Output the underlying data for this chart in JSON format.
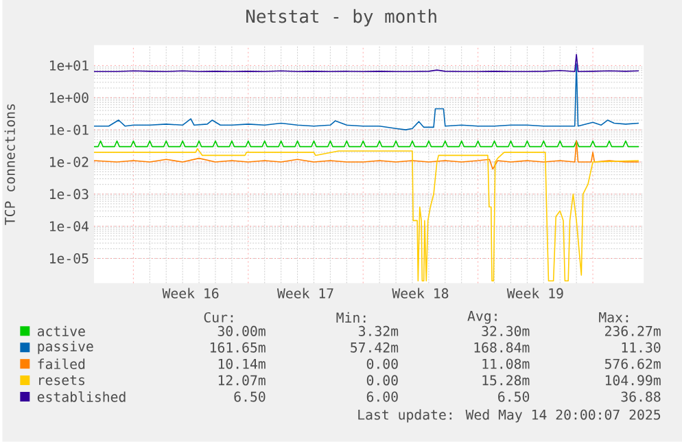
{
  "chart_data": {
    "type": "line",
    "title": "Netstat - by month",
    "ylabel": "TCP connections",
    "log": true,
    "grid": true,
    "legend": "bottom",
    "marker": "none",
    "line_style": "solid",
    "xlim": [
      "2025-04-11T14:24",
      "2025-05-15T02:24"
    ],
    "xticks": [
      {
        "value": "2025-04-14T00:00",
        "label": null
      },
      {
        "value": "2025-04-21T00:00",
        "label": null
      },
      {
        "value": "2025-04-28T00:00",
        "label": null
      },
      {
        "value": "2025-05-05T00:00",
        "label": null
      },
      {
        "value": "2025-05-12T00:00",
        "label": null
      },
      {
        "value": "2025-04-17T12:00",
        "label": "Week 16"
      },
      {
        "value": "2025-04-24T12:00",
        "label": "Week 17"
      },
      {
        "value": "2025-05-01T12:00",
        "label": "Week 18"
      },
      {
        "value": "2025-05-08T12:00",
        "label": "Week 19"
      }
    ],
    "ylim": [
      1.7e-06,
      43
    ],
    "yticks": [
      {
        "value": 1e-05,
        "label": "1e-05"
      },
      {
        "value": 0.0001,
        "label": "1e-04"
      },
      {
        "value": 0.001,
        "label": "1e-03"
      },
      {
        "value": 0.01,
        "label": "1e-02"
      },
      {
        "value": 0.1,
        "label": "1e-01"
      },
      {
        "value": 1,
        "label": "1e+00"
      },
      {
        "value": 10,
        "label": "1e+01"
      }
    ],
    "series": [
      {
        "name": "active",
        "color": "#00cc00",
        "x": [
          "2025-04-11T14:24",
          "2025-04-11T20:24",
          "2025-04-12T00:00",
          "2025-04-12T03:36",
          "2025-04-12T20:24",
          "2025-04-13T00:00",
          "2025-04-13T03:36",
          "2025-04-13T20:24",
          "2025-04-14T00:00",
          "2025-04-14T03:36",
          "2025-04-14T20:24",
          "2025-04-15T00:00",
          "2025-04-15T03:36",
          "2025-04-15T20:24",
          "2025-04-16T00:00",
          "2025-04-16T03:36",
          "2025-04-16T20:24",
          "2025-04-17T00:00",
          "2025-04-17T03:36",
          "2025-04-17T20:24",
          "2025-04-18T00:00",
          "2025-04-18T03:36",
          "2025-04-18T20:24",
          "2025-04-19T00:00",
          "2025-04-19T03:36",
          "2025-04-19T20:24",
          "2025-04-20T00:00",
          "2025-04-20T03:36",
          "2025-04-20T20:24",
          "2025-04-21T00:00",
          "2025-04-21T03:36",
          "2025-04-21T20:24",
          "2025-04-22T00:00",
          "2025-04-22T03:36",
          "2025-04-22T20:24",
          "2025-04-23T00:00",
          "2025-04-23T03:36",
          "2025-04-23T20:24",
          "2025-04-24T00:00",
          "2025-04-24T03:36",
          "2025-04-24T20:24",
          "2025-04-25T00:00",
          "2025-04-25T03:36",
          "2025-04-25T20:24",
          "2025-04-26T00:00",
          "2025-04-26T03:36",
          "2025-04-26T20:24",
          "2025-04-27T00:00",
          "2025-04-27T03:36",
          "2025-04-27T20:24",
          "2025-04-28T00:00",
          "2025-04-28T03:36",
          "2025-04-28T20:24",
          "2025-04-29T00:00",
          "2025-04-29T03:36",
          "2025-04-29T20:24",
          "2025-04-30T00:00",
          "2025-04-30T03:36",
          "2025-04-30T20:24",
          "2025-05-01T00:00",
          "2025-05-01T03:36",
          "2025-05-01T20:24",
          "2025-05-02T00:00",
          "2025-05-02T03:36",
          "2025-05-02T20:24",
          "2025-05-03T00:00",
          "2025-05-03T03:36",
          "2025-05-03T20:24",
          "2025-05-04T00:00",
          "2025-05-04T03:36",
          "2025-05-04T20:24",
          "2025-05-05T00:00",
          "2025-05-05T03:36",
          "2025-05-05T20:24",
          "2025-05-06T00:00",
          "2025-05-06T03:36",
          "2025-05-06T20:24",
          "2025-05-07T00:00",
          "2025-05-07T03:36",
          "2025-05-07T20:24",
          "2025-05-08T00:00",
          "2025-05-08T03:36",
          "2025-05-08T20:24",
          "2025-05-09T00:00",
          "2025-05-09T03:36",
          "2025-05-09T20:24",
          "2025-05-10T00:00",
          "2025-05-10T03:36",
          "2025-05-10T20:24",
          "2025-05-11T00:00",
          "2025-05-11T03:36",
          "2025-05-11T20:24",
          "2025-05-12T00:00",
          "2025-05-12T03:36",
          "2025-05-12T20:24",
          "2025-05-13T00:00",
          "2025-05-13T03:36",
          "2025-05-13T20:24",
          "2025-05-14T00:00",
          "2025-05-14T03:36",
          "2025-05-14T19:12"
        ],
        "values": [
          0.03,
          0.03,
          0.045,
          0.03,
          0.03,
          0.045,
          0.03,
          0.03,
          0.045,
          0.03,
          0.03,
          0.045,
          0.03,
          0.03,
          0.045,
          0.03,
          0.03,
          0.045,
          0.03,
          0.03,
          0.045,
          0.03,
          0.03,
          0.045,
          0.03,
          0.03,
          0.045,
          0.03,
          0.03,
          0.045,
          0.03,
          0.03,
          0.045,
          0.03,
          0.03,
          0.045,
          0.03,
          0.03,
          0.045,
          0.03,
          0.03,
          0.045,
          0.03,
          0.03,
          0.045,
          0.03,
          0.03,
          0.045,
          0.03,
          0.03,
          0.045,
          0.03,
          0.03,
          0.045,
          0.03,
          0.03,
          0.045,
          0.03,
          0.03,
          0.045,
          0.03,
          0.03,
          0.045,
          0.03,
          0.03,
          0.045,
          0.03,
          0.03,
          0.045,
          0.03,
          0.03,
          0.045,
          0.03,
          0.03,
          0.045,
          0.03,
          0.03,
          0.045,
          0.03,
          0.03,
          0.045,
          0.03,
          0.03,
          0.045,
          0.03,
          0.03,
          0.045,
          0.03,
          0.03,
          0.045,
          0.03,
          0.03,
          0.045,
          0.03,
          0.03,
          0.045,
          0.03,
          0.03,
          0.045,
          0.03,
          0.03
        ]
      },
      {
        "name": "passive",
        "color": "#0066b3",
        "x": [
          "2025-04-11T14:24",
          "2025-04-12T12:00",
          "2025-04-13T02:24",
          "2025-04-13T12:00",
          "2025-04-14T00:00",
          "2025-04-15T00:00",
          "2025-04-16T00:00",
          "2025-04-17T00:00",
          "2025-04-17T12:00",
          "2025-04-17T16:48",
          "2025-04-18T12:00",
          "2025-04-18T19:12",
          "2025-04-19T07:12",
          "2025-04-20T00:00",
          "2025-04-21T00:00",
          "2025-04-22T00:00",
          "2025-04-23T00:00",
          "2025-04-24T00:00",
          "2025-04-25T00:00",
          "2025-04-26T00:00",
          "2025-04-26T07:12",
          "2025-04-27T00:00",
          "2025-04-28T00:00",
          "2025-04-29T00:00",
          "2025-04-30T00:00",
          "2025-04-30T14:24",
          "2025-05-01T00:00",
          "2025-05-01T09:36",
          "2025-05-01T16:48",
          "2025-05-02T07:12",
          "2025-05-02T09:36",
          "2025-05-02T21:36",
          "2025-05-03T00:00",
          "2025-05-04T00:00",
          "2025-05-05T00:00",
          "2025-05-06T00:00",
          "2025-05-07T00:00",
          "2025-05-08T00:00",
          "2025-05-09T00:00",
          "2025-05-10T00:00",
          "2025-05-10T21:36",
          "2025-05-11T00:00",
          "2025-05-11T02:24",
          "2025-05-12T00:00",
          "2025-05-12T12:00",
          "2025-05-12T21:36",
          "2025-05-13T07:12",
          "2025-05-14T00:00",
          "2025-05-14T19:12"
        ],
        "values": [
          0.13,
          0.13,
          0.2,
          0.13,
          0.14,
          0.14,
          0.15,
          0.14,
          0.22,
          0.14,
          0.15,
          0.2,
          0.14,
          0.14,
          0.15,
          0.14,
          0.16,
          0.14,
          0.13,
          0.14,
          0.19,
          0.14,
          0.13,
          0.13,
          0.11,
          0.1,
          0.11,
          0.18,
          0.12,
          0.12,
          0.45,
          0.45,
          0.13,
          0.14,
          0.13,
          0.13,
          0.14,
          0.14,
          0.13,
          0.13,
          0.13,
          11.3,
          0.13,
          0.17,
          0.14,
          0.2,
          0.16,
          0.15,
          0.16
        ]
      },
      {
        "name": "failed",
        "color": "#ff8000",
        "x": [
          "2025-04-11T14:24",
          "2025-04-13T00:00",
          "2025-04-14T00:00",
          "2025-04-15T00:00",
          "2025-04-16T00:00",
          "2025-04-17T00:00",
          "2025-04-18T00:00",
          "2025-04-19T00:00",
          "2025-04-20T00:00",
          "2025-04-21T00:00",
          "2025-04-22T00:00",
          "2025-04-23T00:00",
          "2025-04-24T00:00",
          "2025-04-25T00:00",
          "2025-04-26T00:00",
          "2025-04-27T00:00",
          "2025-04-28T00:00",
          "2025-04-29T00:00",
          "2025-04-30T00:00",
          "2025-05-01T00:00",
          "2025-05-02T00:00",
          "2025-05-03T00:00",
          "2025-05-04T00:00",
          "2025-05-05T00:00",
          "2025-05-05T16:48",
          "2025-05-05T21:36",
          "2025-05-06T04:48",
          "2025-05-07T00:00",
          "2025-05-08T00:00",
          "2025-05-09T00:00",
          "2025-05-10T00:00",
          "2025-05-10T21:36",
          "2025-05-11T00:00",
          "2025-05-11T02:24",
          "2025-05-11T21:36",
          "2025-05-12T00:00",
          "2025-05-12T02:24",
          "2025-05-13T00:00",
          "2025-05-14T00:00",
          "2025-05-14T19:12"
        ],
        "values": [
          0.011,
          0.01,
          0.011,
          0.01,
          0.012,
          0.01,
          0.013,
          0.01,
          0.011,
          0.01,
          0.011,
          0.01,
          0.012,
          0.01,
          0.011,
          0.01,
          0.01,
          0.011,
          0.01,
          0.011,
          0.01,
          0.011,
          0.01,
          0.011,
          0.012,
          0.006,
          0.011,
          0.01,
          0.011,
          0.01,
          0.011,
          0.01,
          0.046,
          0.01,
          0.01,
          0.02,
          0.01,
          0.011,
          0.01,
          0.01
        ]
      },
      {
        "name": "resets",
        "color": "#ffcc00",
        "x": [
          "2025-04-11T14:24",
          "2025-04-17T19:12",
          "2025-04-17T21:36",
          "2025-04-18T04:48",
          "2025-04-20T19:12",
          "2025-04-20T21:36",
          "2025-04-25T00:00",
          "2025-04-25T02:24",
          "2025-04-26T12:00",
          "2025-05-01T00:00",
          "2025-05-01T01:12",
          "2025-05-01T07:12",
          "2025-05-01T08:24",
          "2025-05-01T10:48",
          "2025-05-01T13:12",
          "2025-05-01T14:24",
          "2025-05-01T16:48",
          "2025-05-01T18:00",
          "2025-05-01T20:24",
          "2025-05-01T22:48",
          "2025-05-02T02:24",
          "2025-05-02T07:12",
          "2025-05-02T12:00",
          "2025-05-02T14:24",
          "2025-05-05T14:24",
          "2025-05-05T16:20",
          "2025-05-05T19:12",
          "2025-05-05T20:24",
          "2025-05-05T22:48",
          "2025-05-06T01:12",
          "2025-05-06T04:48",
          "2025-05-06T14:24",
          "2025-05-09T02:24",
          "2025-05-09T04:48",
          "2025-05-09T07:12",
          "2025-05-09T14:24",
          "2025-05-09T18:00",
          "2025-05-10T00:00",
          "2025-05-10T04:48",
          "2025-05-10T07:12",
          "2025-05-10T12:00",
          "2025-05-10T14:24",
          "2025-05-10T19:12",
          "2025-05-11T00:00",
          "2025-05-11T07:12",
          "2025-05-11T09:36",
          "2025-05-11T16:48",
          "2025-05-12T00:00",
          "2025-05-14T19:12"
        ],
        "values": [
          0.02,
          0.02,
          0.026,
          0.016,
          0.016,
          0.02,
          0.02,
          0.016,
          0.022,
          0.022,
          0.00015,
          0.00015,
          2e-06,
          0.0004,
          0.00015,
          2e-06,
          2e-06,
          0.00015,
          2e-06,
          0.00015,
          0.0004,
          0.001,
          0.01,
          0.016,
          0.016,
          0.0004,
          0.0004,
          2e-06,
          2e-06,
          0.01,
          0.013,
          0.02,
          0.02,
          0.00015,
          2e-06,
          2e-06,
          0.0002,
          0.0003,
          0.00015,
          2e-06,
          2e-06,
          0.00015,
          0.001,
          0.00015,
          3e-06,
          0.001,
          0.002,
          0.01,
          0.011
        ]
      },
      {
        "name": "established",
        "color": "#330099",
        "x": [
          "2025-04-11T14:24",
          "2025-04-13T00:00",
          "2025-04-14T00:00",
          "2025-04-15T00:00",
          "2025-04-16T00:00",
          "2025-04-17T00:00",
          "2025-04-18T00:00",
          "2025-04-19T00:00",
          "2025-04-20T00:00",
          "2025-04-21T00:00",
          "2025-04-22T00:00",
          "2025-04-23T00:00",
          "2025-04-24T00:00",
          "2025-04-25T00:00",
          "2025-04-26T00:00",
          "2025-04-27T00:00",
          "2025-04-28T00:00",
          "2025-04-29T00:00",
          "2025-04-30T00:00",
          "2025-05-01T00:00",
          "2025-05-02T00:00",
          "2025-05-02T12:00",
          "2025-05-03T00:00",
          "2025-05-04T00:00",
          "2025-05-05T00:00",
          "2025-05-06T00:00",
          "2025-05-07T00:00",
          "2025-05-08T00:00",
          "2025-05-09T00:00",
          "2025-05-10T00:00",
          "2025-05-10T21:36",
          "2025-05-11T00:00",
          "2025-05-11T02:24",
          "2025-05-12T00:00",
          "2025-05-13T00:00",
          "2025-05-14T00:00",
          "2025-05-14T19:12"
        ],
        "values": [
          6.5,
          6.5,
          6.8,
          6.6,
          6.5,
          6.8,
          6.5,
          6.6,
          6.5,
          6.6,
          6.5,
          6.8,
          6.5,
          6.6,
          6.5,
          6.6,
          6.5,
          6.6,
          6.5,
          6.5,
          6.6,
          7.2,
          6.6,
          6.5,
          6.5,
          6.6,
          6.5,
          6.5,
          6.6,
          7.0,
          6.5,
          22,
          6.5,
          6.6,
          6.8,
          6.6,
          6.8
        ]
      }
    ],
    "annotations": [
      "Cur:",
      "Min:",
      "Avg:",
      "Max:",
      "30.00m",
      "3.32m",
      "32.30m",
      "236.27m",
      "161.65m",
      "57.42m",
      "168.84m",
      "11.30",
      "10.14m",
      "0.00",
      "11.08m",
      "576.62m",
      "12.07m",
      "0.00",
      "15.28m",
      "104.99m",
      "6.50",
      "6.00",
      "6.50",
      "36.88",
      "Last update: Wed May 14 20:00:07 2025"
    ]
  }
}
